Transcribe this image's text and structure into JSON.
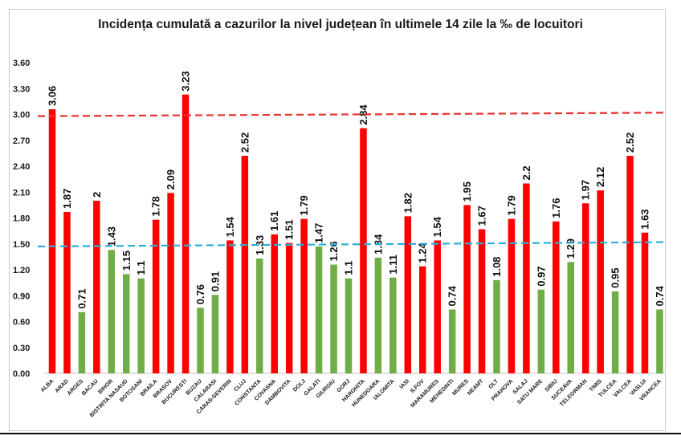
{
  "chart_data": {
    "type": "bar",
    "title": "Incidența cumulată a cazurilor la nivel județean în ultimele 14 zile la ‰ de locuitori",
    "xlabel": "",
    "ylabel": "",
    "ylim": [
      0,
      3.6
    ],
    "yticks": [
      "0.00",
      "0.30",
      "0.60",
      "0.90",
      "1.20",
      "1.50",
      "1.80",
      "2.10",
      "2.40",
      "2.70",
      "3.00",
      "3.30",
      "3.60"
    ],
    "grid": false,
    "legend": "none",
    "categories": [
      "ALBA",
      "ARAD",
      "ARGES",
      "BACAU",
      "BIHOR",
      "BISTRITA NASAUD",
      "BOTOSANI",
      "BRAILA",
      "BRASOV",
      "BUCURESTI",
      "BUZAU",
      "CALARASI",
      "CARAS-SEVERIN",
      "CLUJ",
      "CONSTANTA",
      "COVASNA",
      "DAMBOVITA",
      "DOLJ",
      "GALATI",
      "GIURGIU",
      "GORJ",
      "HARGHITA",
      "HUNEDOARA",
      "IALOMITA",
      "IASI",
      "ILFOV",
      "MARAMURES",
      "MEHEDINTI",
      "MURES",
      "NEAMT",
      "OLT",
      "PRAHOVA",
      "SALAJ",
      "SATU MARE",
      "SIBIU",
      "SUCEAVA",
      "TELEORMAN",
      "TIMIS",
      "TULCEA",
      "VALCEA",
      "VASLUI",
      "VRANCEA"
    ],
    "values": [
      3.06,
      1.87,
      0.71,
      2.0,
      1.43,
      1.15,
      1.1,
      1.78,
      2.09,
      3.23,
      0.76,
      0.91,
      1.54,
      2.52,
      1.33,
      1.61,
      1.51,
      1.79,
      1.47,
      1.26,
      1.1,
      2.84,
      1.34,
      1.11,
      1.82,
      1.24,
      1.54,
      0.74,
      1.95,
      1.67,
      1.08,
      1.79,
      2.2,
      0.97,
      1.76,
      1.29,
      1.97,
      2.12,
      0.95,
      2.52,
      1.63,
      0.74
    ],
    "value_labels": [
      "3.06",
      "1.87",
      "0.71",
      "2",
      "1.43",
      "1.15",
      "1.1",
      "1.78",
      "2.09",
      "3.23",
      "0.76",
      "0.91",
      "1.54",
      "2.52",
      "1.33",
      "1.61",
      "1.51",
      "1.79",
      "1.47",
      "1.26",
      "1.1",
      "2.84",
      "1.34",
      "1.11",
      "1.82",
      "1.24",
      "1.54",
      "0.74",
      "1.95",
      "1.67",
      "1.08",
      "1.79",
      "2.2",
      "0.97",
      "1.76",
      "1.29",
      "1.97",
      "2.12",
      "0.95",
      "2.52",
      "1.63",
      "0.74"
    ],
    "bar_colors": [
      "red",
      "red",
      "green",
      "red",
      "green",
      "green",
      "green",
      "red",
      "red",
      "red",
      "green",
      "green",
      "red",
      "red",
      "green",
      "red",
      "red",
      "red",
      "green",
      "green",
      "green",
      "red",
      "green",
      "green",
      "red",
      "red",
      "red",
      "green",
      "red",
      "red",
      "green",
      "red",
      "red",
      "green",
      "red",
      "green",
      "red",
      "red",
      "green",
      "red",
      "red",
      "green"
    ],
    "reference_lines": [
      {
        "color": "#e8332e",
        "style": "dashed",
        "start": 2.98,
        "end": 3.02
      },
      {
        "color": "#2ab0d8",
        "style": "dashed",
        "start": 1.47,
        "end": 1.52
      }
    ]
  },
  "colors": {
    "red": "#ff0000",
    "green": "#70ad47",
    "axis": "#bfbfbf",
    "text": "#1a1a1a"
  }
}
